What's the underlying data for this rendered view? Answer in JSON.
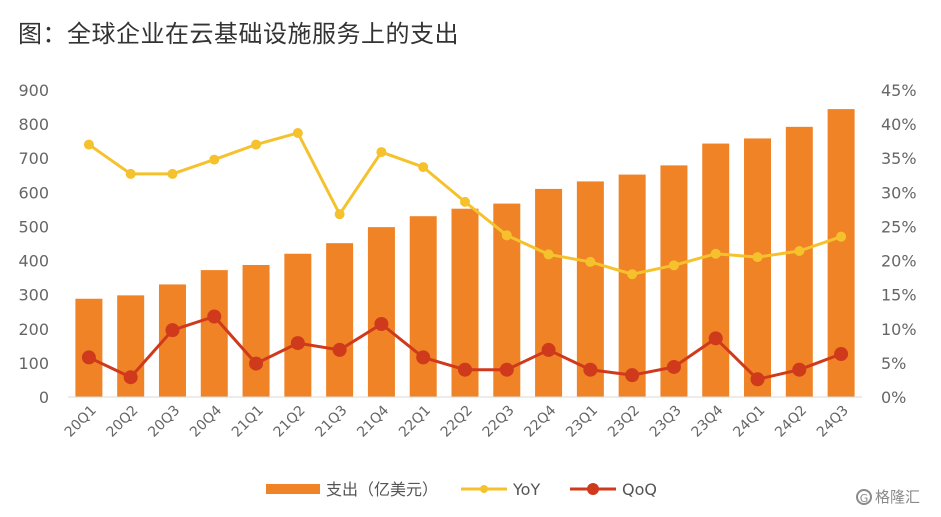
{
  "title": "图：全球企业在云基础设施服务上的支出",
  "watermark": "格隆汇",
  "colors": {
    "bar": "#f08326",
    "yoy": "#f5c22d",
    "qoq": "#cf3a1c",
    "axis_text": "#666666",
    "gridline": "#d9d9d9"
  },
  "chart_data": {
    "type": "bar",
    "categories": [
      "20Q1",
      "20Q2",
      "20Q3",
      "20Q4",
      "21Q1",
      "21Q2",
      "21Q3",
      "21Q4",
      "22Q1",
      "22Q2",
      "22Q3",
      "22Q4",
      "23Q1",
      "23Q2",
      "23Q3",
      "23Q4",
      "24Q1",
      "24Q2",
      "24Q3"
    ],
    "y_left": {
      "ylim": [
        0,
        900
      ],
      "ticks": [
        "0",
        "100",
        "200",
        "300",
        "400",
        "500",
        "600",
        "700",
        "800",
        "900"
      ]
    },
    "y_right": {
      "ylim": [
        0,
        45
      ],
      "ticks": [
        "0%",
        "5%",
        "10%",
        "15%",
        "20%",
        "25%",
        "30%",
        "35%",
        "40%",
        "45%"
      ]
    },
    "grid": false,
    "legend_position": "bottom",
    "series": [
      {
        "name": "支出（亿美元）",
        "type": "bar",
        "axis": "left",
        "values": [
          288,
          298,
          330,
          372,
          387,
          420,
          451,
          498,
          530,
          552,
          567,
          610,
          632,
          652,
          679,
          743,
          758,
          792,
          844
        ]
      },
      {
        "name": "YoY",
        "type": "line",
        "axis": "right",
        "values": [
          37.0,
          32.7,
          32.7,
          34.8,
          37.0,
          38.7,
          26.8,
          35.9,
          33.7,
          28.6,
          23.7,
          20.9,
          19.8,
          18.0,
          19.3,
          21.0,
          20.5,
          21.4,
          23.5
        ]
      },
      {
        "name": "QoQ",
        "type": "line",
        "axis": "right",
        "values": [
          5.8,
          2.9,
          9.8,
          11.8,
          4.9,
          7.9,
          6.9,
          10.7,
          5.8,
          4.0,
          4.0,
          6.9,
          4.0,
          3.2,
          4.4,
          8.6,
          2.6,
          4.0,
          6.3
        ]
      }
    ]
  }
}
